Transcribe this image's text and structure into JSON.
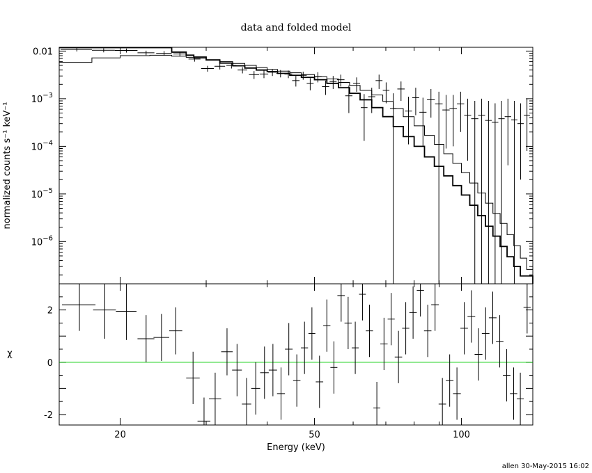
{
  "chart_data": {
    "title": "data and folded model",
    "xlabel": "Energy (keV)",
    "xscale": "log",
    "xlim": [
      15,
      140
    ],
    "x_ticks": [
      20,
      50,
      100
    ],
    "top_panel": {
      "type": "line",
      "ylabel": "normalized counts s⁻¹ keV⁻¹",
      "yscale": "log",
      "ylim": [
        1.3e-07,
        0.012
      ],
      "y_tick_labels": [
        {
          "v": 0.01,
          "base": "0.01",
          "exp": ""
        },
        {
          "v": 0.001,
          "base": "10",
          "exp": "−3"
        },
        {
          "v": 0.0001,
          "base": "10",
          "exp": "−4"
        },
        {
          "v": 1e-05,
          "base": "10",
          "exp": "−5"
        },
        {
          "v": 1e-06,
          "base": "10",
          "exp": "−6"
        }
      ],
      "data_points": [
        {
          "x": 16.3,
          "y": 0.0108,
          "xe": 1.2,
          "yl": 0.0098,
          "yh": 0.0118
        },
        {
          "x": 18.5,
          "y": 0.0104,
          "xe": 1.0,
          "yl": 0.0094,
          "yh": 0.0114
        },
        {
          "x": 20.6,
          "y": 0.0103,
          "xe": 1.1,
          "yl": 0.0093,
          "yh": 0.0113
        },
        {
          "x": 22.6,
          "y": 0.0092,
          "xe": 0.9,
          "yl": 0.0082,
          "yh": 0.0102
        },
        {
          "x": 24.6,
          "y": 0.009,
          "xe": 0.9,
          "yl": 0.008,
          "yh": 0.01
        },
        {
          "x": 26.5,
          "y": 0.0087,
          "xe": 0.8,
          "yl": 0.0077,
          "yh": 0.0097
        },
        {
          "x": 28.4,
          "y": 0.0068,
          "xe": 0.8,
          "yl": 0.006,
          "yh": 0.0076
        },
        {
          "x": 30.2,
          "y": 0.0043,
          "xe": 0.9,
          "yl": 0.0037,
          "yh": 0.0049
        },
        {
          "x": 32.0,
          "y": 0.0048,
          "xe": 0.8,
          "yl": 0.0041,
          "yh": 0.0055
        },
        {
          "x": 33.8,
          "y": 0.005,
          "xe": 0.8,
          "yl": 0.0043,
          "yh": 0.0057
        },
        {
          "x": 35.6,
          "y": 0.004,
          "xe": 0.8,
          "yl": 0.0034,
          "yh": 0.0046
        },
        {
          "x": 37.6,
          "y": 0.0032,
          "xe": 0.9,
          "yl": 0.0026,
          "yh": 0.0038
        },
        {
          "x": 39.4,
          "y": 0.0033,
          "xe": 0.8,
          "yl": 0.0027,
          "yh": 0.0039
        },
        {
          "x": 41.0,
          "y": 0.0036,
          "xe": 0.8,
          "yl": 0.003,
          "yh": 0.0042
        },
        {
          "x": 42.6,
          "y": 0.0034,
          "xe": 0.8,
          "yl": 0.0028,
          "yh": 0.004
        },
        {
          "x": 44.2,
          "y": 0.0033,
          "xe": 0.8,
          "yl": 0.0027,
          "yh": 0.0039
        },
        {
          "x": 45.8,
          "y": 0.0024,
          "xe": 0.8,
          "yl": 0.0018,
          "yh": 0.003
        },
        {
          "x": 47.4,
          "y": 0.0031,
          "xe": 0.8,
          "yl": 0.0025,
          "yh": 0.0037
        },
        {
          "x": 49.0,
          "y": 0.0021,
          "xe": 0.8,
          "yl": 0.0015,
          "yh": 0.0027
        },
        {
          "x": 50.8,
          "y": 0.0029,
          "xe": 0.9,
          "yl": 0.0022,
          "yh": 0.0036
        },
        {
          "x": 52.7,
          "y": 0.0018,
          "xe": 0.9,
          "yl": 0.0012,
          "yh": 0.0024
        },
        {
          "x": 54.6,
          "y": 0.0023,
          "xe": 0.9,
          "yl": 0.0016,
          "yh": 0.003
        },
        {
          "x": 56.6,
          "y": 0.0025,
          "xe": 1.0,
          "yl": 0.0018,
          "yh": 0.0032
        },
        {
          "x": 58.8,
          "y": 0.00115,
          "xe": 1.0,
          "yl": 0.0005,
          "yh": 0.0019
        },
        {
          "x": 61.0,
          "y": 0.0021,
          "xe": 1.0,
          "yl": 0.0014,
          "yh": 0.0028
        },
        {
          "x": 63.2,
          "y": 0.00065,
          "xe": 1.0,
          "yl": 0.00013,
          "yh": 0.00125
        },
        {
          "x": 65.5,
          "y": 0.0011,
          "xe": 1.1,
          "yl": 0.0005,
          "yh": 0.0017
        },
        {
          "x": 67.8,
          "y": 0.0024,
          "xe": 1.1,
          "yl": 0.0016,
          "yh": 0.0032
        },
        {
          "x": 70.1,
          "y": 0.0015,
          "xe": 1.1,
          "yl": 0.0008,
          "yh": 0.0022
        },
        {
          "x": 72.5,
          "y": 0.00062,
          "xe": 1.1,
          "yl": 1.3e-07,
          "yh": 0.0013
        },
        {
          "x": 75.2,
          "y": 0.0016,
          "xe": 1.3,
          "yl": 0.0009,
          "yh": 0.0023
        },
        {
          "x": 77.9,
          "y": 0.00055,
          "xe": 1.3,
          "yl": 0.00011,
          "yh": 0.0011
        },
        {
          "x": 80.6,
          "y": 0.00105,
          "xe": 1.3,
          "yl": 0.00045,
          "yh": 0.0017
        },
        {
          "x": 83.4,
          "y": 0.00052,
          "xe": 1.4,
          "yl": 0.0001,
          "yh": 0.00105
        },
        {
          "x": 86.6,
          "y": 0.00095,
          "xe": 1.6,
          "yl": 0.0004,
          "yh": 0.0016
        },
        {
          "x": 89.9,
          "y": 0.00078,
          "xe": 1.6,
          "yl": 1.3e-07,
          "yh": 0.0014
        },
        {
          "x": 93.0,
          "y": 0.00058,
          "xe": 1.6,
          "yl": 9e-05,
          "yh": 0.0012
        },
        {
          "x": 96.2,
          "y": 0.00062,
          "xe": 1.7,
          "yl": 0.0001,
          "yh": 0.0012
        },
        {
          "x": 99.6,
          "y": 0.00078,
          "xe": 1.7,
          "yl": 0.0002,
          "yh": 0.0014
        },
        {
          "x": 103.0,
          "y": 0.00045,
          "xe": 1.7,
          "yl": 5e-05,
          "yh": 0.001
        },
        {
          "x": 106.5,
          "y": 0.00038,
          "xe": 1.8,
          "yl": 1.3e-07,
          "yh": 0.0009
        },
        {
          "x": 110.0,
          "y": 0.00045,
          "xe": 1.8,
          "yl": 1.3e-07,
          "yh": 0.001
        },
        {
          "x": 113.6,
          "y": 0.00035,
          "xe": 1.8,
          "yl": 1.3e-07,
          "yh": 0.0009
        },
        {
          "x": 117.2,
          "y": 0.00032,
          "xe": 1.8,
          "yl": 1.3e-07,
          "yh": 0.0008
        },
        {
          "x": 120.8,
          "y": 0.00038,
          "xe": 1.8,
          "yl": 1.3e-07,
          "yh": 0.0009
        },
        {
          "x": 124.5,
          "y": 0.00042,
          "xe": 1.9,
          "yl": 4e-05,
          "yh": 0.001
        },
        {
          "x": 128.3,
          "y": 0.00036,
          "xe": 1.9,
          "yl": 1.3e-07,
          "yh": 0.0009
        },
        {
          "x": 132.2,
          "y": 0.0003,
          "xe": 2.0,
          "yl": 2e-05,
          "yh": 0.0008
        },
        {
          "x": 136.2,
          "y": 0.00045,
          "xe": 2.0,
          "yl": 8e-05,
          "yh": 0.001
        }
      ],
      "model_a": [
        [
          15,
          0.0118
        ],
        [
          25.5,
          0.0118
        ],
        [
          25.5,
          0.0095
        ],
        [
          27.3,
          0.0082
        ],
        [
          28.3,
          0.0075
        ],
        [
          30.0,
          0.0065
        ],
        [
          32.0,
          0.0056
        ],
        [
          34.0,
          0.0049
        ],
        [
          36.0,
          0.0044
        ],
        [
          38.0,
          0.004
        ],
        [
          40.0,
          0.0037
        ],
        [
          42.0,
          0.0034
        ],
        [
          44.5,
          0.0031
        ],
        [
          47.0,
          0.0028
        ],
        [
          50.0,
          0.0025
        ],
        [
          53.0,
          0.0021
        ],
        [
          56.0,
          0.0017
        ],
        [
          59.0,
          0.0013
        ],
        [
          62.0,
          0.00095
        ],
        [
          65.5,
          0.00065
        ],
        [
          69.0,
          0.00042
        ],
        [
          72.5,
          0.00026
        ],
        [
          76.0,
          0.00016
        ],
        [
          80.0,
          0.0001
        ],
        [
          84.0,
          6e-05
        ],
        [
          88.0,
          3.8e-05
        ],
        [
          92.0,
          2.4e-05
        ],
        [
          96.0,
          1.5e-05
        ],
        [
          100.0,
          9.5e-06
        ],
        [
          104.0,
          5.8e-06
        ],
        [
          108.0,
          3.5e-06
        ],
        [
          112.0,
          2.1e-06
        ],
        [
          116.0,
          1.3e-06
        ],
        [
          120.0,
          7.9e-07
        ],
        [
          124.0,
          4.8e-07
        ],
        [
          128.0,
          3e-07
        ],
        [
          132.0,
          1.9e-07
        ],
        [
          140,
          1.3e-07
        ]
      ],
      "model_b": [
        [
          15,
          0.0058
        ],
        [
          17.5,
          0.0058
        ],
        [
          17.5,
          0.0072
        ],
        [
          20.0,
          0.008
        ],
        [
          23.0,
          0.0082
        ],
        [
          25.5,
          0.0082
        ],
        [
          25.5,
          0.0078
        ],
        [
          27.3,
          0.0074
        ],
        [
          28.3,
          0.0071
        ],
        [
          30.0,
          0.0066
        ],
        [
          32.0,
          0.006
        ],
        [
          34.0,
          0.0055
        ],
        [
          36.0,
          0.005
        ],
        [
          38.0,
          0.0045
        ],
        [
          40.0,
          0.0041
        ],
        [
          42.0,
          0.0038
        ],
        [
          44.5,
          0.0035
        ],
        [
          47.0,
          0.0032
        ],
        [
          50.0,
          0.0029
        ],
        [
          53.0,
          0.0026
        ],
        [
          56.0,
          0.0022
        ],
        [
          59.0,
          0.0019
        ],
        [
          62.0,
          0.0015
        ],
        [
          65.5,
          0.0012
        ],
        [
          69.0,
          0.00088
        ],
        [
          72.5,
          0.00062
        ],
        [
          76.0,
          0.00042
        ],
        [
          80.0,
          0.00027
        ],
        [
          84.0,
          0.00017
        ],
        [
          88.0,
          0.00011
        ],
        [
          92.0,
          7e-05
        ],
        [
          96.0,
          4.4e-05
        ],
        [
          100.0,
          2.8e-05
        ],
        [
          104.0,
          1.7e-05
        ],
        [
          108.0,
          1.05e-05
        ],
        [
          112.0,
          6.4e-06
        ],
        [
          116.0,
          3.9e-06
        ],
        [
          120.0,
          2.4e-06
        ],
        [
          124.0,
          1.4e-06
        ],
        [
          128.0,
          8.2e-07
        ],
        [
          132.0,
          4.5e-07
        ],
        [
          136.0,
          2.6e-07
        ],
        [
          140,
          1.6e-07
        ]
      ]
    },
    "bottom_panel": {
      "type": "scatter",
      "ylabel": "χ",
      "ylim": [
        -2.4,
        3.0
      ],
      "y_ticks": [
        -2,
        0,
        2
      ],
      "zero_line_color": "#00cc00",
      "residuals": [
        {
          "x": 16.5,
          "y": 2.2,
          "xe": 1.3,
          "ye": 1.0
        },
        {
          "x": 18.6,
          "y": 2.0,
          "xe": 1.0,
          "ye": 1.1
        },
        {
          "x": 20.6,
          "y": 1.95,
          "xe": 1.0,
          "ye": 1.1
        },
        {
          "x": 22.6,
          "y": 0.9,
          "xe": 0.9,
          "ye": 0.9
        },
        {
          "x": 24.3,
          "y": 0.95,
          "xe": 0.9,
          "ye": 0.9
        },
        {
          "x": 26.0,
          "y": 1.2,
          "xe": 0.8,
          "ye": 0.9
        },
        {
          "x": 28.2,
          "y": -0.6,
          "xe": 0.9,
          "ye": 1.0
        },
        {
          "x": 29.7,
          "y": -2.25,
          "xe": 0.9,
          "ye": 0.9
        },
        {
          "x": 31.3,
          "y": -1.4,
          "xe": 0.9,
          "ye": 1.0
        },
        {
          "x": 33.1,
          "y": 0.4,
          "xe": 0.9,
          "ye": 0.9
        },
        {
          "x": 34.7,
          "y": -0.3,
          "xe": 0.8,
          "ye": 1.0
        },
        {
          "x": 36.3,
          "y": -1.6,
          "xe": 0.8,
          "ye": 1.0
        },
        {
          "x": 37.9,
          "y": -1.0,
          "xe": 0.8,
          "ye": 1.0
        },
        {
          "x": 39.5,
          "y": -0.4,
          "xe": 0.8,
          "ye": 1.0
        },
        {
          "x": 41.1,
          "y": -0.3,
          "xe": 0.8,
          "ye": 1.0
        },
        {
          "x": 42.7,
          "y": -1.2,
          "xe": 0.8,
          "ye": 1.0
        },
        {
          "x": 44.3,
          "y": 0.5,
          "xe": 0.8,
          "ye": 1.0
        },
        {
          "x": 46.0,
          "y": -0.7,
          "xe": 0.8,
          "ye": 1.0
        },
        {
          "x": 47.7,
          "y": 0.55,
          "xe": 0.8,
          "ye": 1.0
        },
        {
          "x": 49.4,
          "y": 1.1,
          "xe": 0.8,
          "ye": 1.0
        },
        {
          "x": 51.2,
          "y": -0.75,
          "xe": 0.9,
          "ye": 1.0
        },
        {
          "x": 53.0,
          "y": 1.4,
          "xe": 0.9,
          "ye": 1.0
        },
        {
          "x": 54.8,
          "y": -0.2,
          "xe": 0.9,
          "ye": 1.0
        },
        {
          "x": 56.7,
          "y": 2.55,
          "xe": 1.0,
          "ye": 1.0
        },
        {
          "x": 58.6,
          "y": 1.5,
          "xe": 1.0,
          "ye": 1.0
        },
        {
          "x": 60.6,
          "y": 0.55,
          "xe": 1.0,
          "ye": 1.0
        },
        {
          "x": 62.7,
          "y": 2.6,
          "xe": 1.0,
          "ye": 1.0
        },
        {
          "x": 64.8,
          "y": 1.2,
          "xe": 1.1,
          "ye": 1.0
        },
        {
          "x": 67.1,
          "y": -1.75,
          "xe": 1.1,
          "ye": 1.0
        },
        {
          "x": 69.4,
          "y": 0.7,
          "xe": 1.2,
          "ye": 1.0
        },
        {
          "x": 71.8,
          "y": 1.65,
          "xe": 1.2,
          "ye": 1.0
        },
        {
          "x": 74.3,
          "y": 0.2,
          "xe": 1.3,
          "ye": 1.0
        },
        {
          "x": 76.9,
          "y": 1.3,
          "xe": 1.3,
          "ye": 1.0
        },
        {
          "x": 79.6,
          "y": 1.9,
          "xe": 1.4,
          "ye": 1.0
        },
        {
          "x": 82.4,
          "y": 2.75,
          "xe": 1.4,
          "ye": 1.0
        },
        {
          "x": 85.3,
          "y": 1.2,
          "xe": 1.5,
          "ye": 1.0
        },
        {
          "x": 88.3,
          "y": 2.2,
          "xe": 1.6,
          "ye": 1.0
        },
        {
          "x": 91.4,
          "y": -1.6,
          "xe": 1.6,
          "ye": 1.0
        },
        {
          "x": 94.6,
          "y": -0.7,
          "xe": 1.7,
          "ye": 1.0
        },
        {
          "x": 97.9,
          "y": -1.2,
          "xe": 1.8,
          "ye": 1.0
        },
        {
          "x": 101.3,
          "y": 1.3,
          "xe": 1.8,
          "ye": 1.0
        },
        {
          "x": 104.8,
          "y": 1.75,
          "xe": 1.9,
          "ye": 1.0
        },
        {
          "x": 108.4,
          "y": 0.3,
          "xe": 2.0,
          "ye": 1.0
        },
        {
          "x": 112.1,
          "y": 1.1,
          "xe": 2.0,
          "ye": 1.0
        },
        {
          "x": 115.9,
          "y": 1.7,
          "xe": 2.1,
          "ye": 1.0
        },
        {
          "x": 119.8,
          "y": 0.8,
          "xe": 2.1,
          "ye": 1.0
        },
        {
          "x": 123.8,
          "y": -0.5,
          "xe": 2.2,
          "ye": 1.0
        },
        {
          "x": 127.9,
          "y": -1.2,
          "xe": 2.2,
          "ye": 1.0
        },
        {
          "x": 132.0,
          "y": -1.4,
          "xe": 2.2,
          "ye": 1.0
        },
        {
          "x": 136.3,
          "y": 2.1,
          "xe": 2.3,
          "ye": 1.0
        }
      ]
    }
  },
  "footer": {
    "stamp": "allen 30-May-2015 16:02"
  }
}
